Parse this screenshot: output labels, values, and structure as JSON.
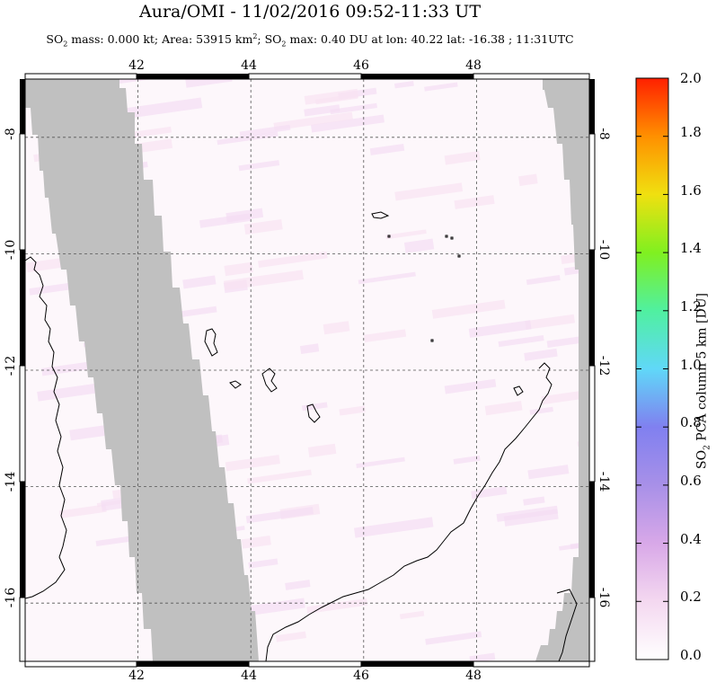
{
  "title": "Aura/OMI - 11/02/2016 09:52-11:33 UT",
  "subtitle": {
    "p1": "SO",
    "p1_sub": "2",
    "p2": " mass: 0.000 kt; Area: 53915 km",
    "p2_sup": "2",
    "p3": "; SO",
    "p3_sub": "2",
    "p4": " max: 0.40 DU at lon: 40.22 lat: -16.38 ; 11:31UTC"
  },
  "map": {
    "lon_range": [
      40.0,
      50.0
    ],
    "lat_range": [
      -17.0,
      -7.0
    ],
    "lon_ticks": [
      42,
      44,
      46,
      48
    ],
    "lon_tick_labels": [
      "42",
      "44",
      "46",
      "48"
    ],
    "lat_ticks": [
      -8,
      -10,
      -12,
      -14,
      -16
    ],
    "lat_tick_labels": [
      "-8",
      "-10",
      "-12",
      "-14",
      "-16"
    ],
    "grid": "dashed",
    "colors": {
      "no_data": "#c0c0c0",
      "background": "#fdf7fb",
      "coastline": "#000000",
      "grid": "#555555"
    }
  },
  "colorbar": {
    "ticks": [
      "0.0",
      "0.2",
      "0.4",
      "0.6",
      "0.8",
      "1.0",
      "1.2",
      "1.4",
      "1.6",
      "1.8",
      "2.0"
    ],
    "title_p1": "SO",
    "title_sub": "2",
    "title_p2": " PCA column 5 km [DU]",
    "colors": [
      "#ffffff",
      "#e8b8e8",
      "#b090e0",
      "#8080f0",
      "#60e8f0",
      "#40e840",
      "#c8e820",
      "#ffc000",
      "#ff6000",
      "#ff2000"
    ]
  }
}
